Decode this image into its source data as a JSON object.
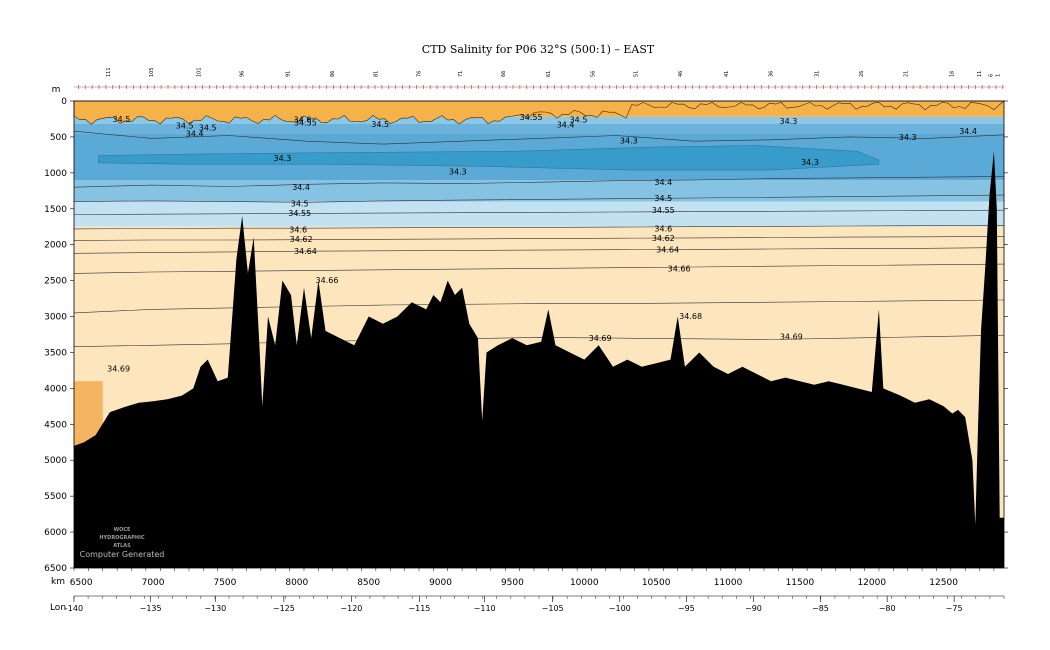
{
  "chart_data": {
    "type": "area",
    "title": "CTD Salinity for P06 32°S (500:1) – EAST",
    "y_unit": "m",
    "x_unit": "km",
    "x2_label": "Lon",
    "ylim": [
      6500,
      0
    ],
    "xlim": [
      6450,
      12920
    ],
    "y_ticks": [
      0,
      500,
      1000,
      1500,
      2000,
      2500,
      3000,
      3500,
      4000,
      4500,
      5000,
      5500,
      6000,
      6500
    ],
    "x_ticks": [
      6500,
      7000,
      7500,
      8000,
      8500,
      9000,
      9500,
      10000,
      10500,
      11000,
      11500,
      12000,
      12500
    ],
    "lon_ticks": [
      {
        "lon": -140,
        "km": 6450,
        "text": "-140"
      },
      {
        "lon": -135,
        "km": 6983,
        "text": "−135"
      },
      {
        "lon": -130,
        "km": 7433,
        "text": "−130"
      },
      {
        "lon": -125,
        "km": 7910,
        "text": "−125"
      },
      {
        "lon": -120,
        "km": 8380,
        "text": "−120"
      },
      {
        "lon": -115,
        "km": 8853,
        "text": "−115"
      },
      {
        "lon": -110,
        "km": 9307,
        "text": "−110"
      },
      {
        "lon": -105,
        "km": 9780,
        "text": "−105"
      },
      {
        "lon": -100,
        "km": 10247,
        "text": "−100"
      },
      {
        "lon": -95,
        "km": 10710,
        "text": "−95"
      },
      {
        "lon": -90,
        "km": 11177,
        "text": "−90"
      },
      {
        "lon": -85,
        "km": 11643,
        "text": "−85"
      },
      {
        "lon": -80,
        "km": 12107,
        "text": "−80"
      },
      {
        "lon": -75,
        "km": 12573,
        "text": "−75"
      }
    ],
    "station_labels": [
      {
        "km": 6700,
        "text": "111"
      },
      {
        "km": 7000,
        "text": "105"
      },
      {
        "km": 7330,
        "text": "101"
      },
      {
        "km": 7630,
        "text": "96"
      },
      {
        "km": 7950,
        "text": "91"
      },
      {
        "km": 8260,
        "text": "86"
      },
      {
        "km": 8560,
        "text": "81"
      },
      {
        "km": 8860,
        "text": "76"
      },
      {
        "km": 9150,
        "text": "71"
      },
      {
        "km": 9450,
        "text": "66"
      },
      {
        "km": 9760,
        "text": "61"
      },
      {
        "km": 10070,
        "text": "56"
      },
      {
        "km": 10370,
        "text": "51"
      },
      {
        "km": 10680,
        "text": "46"
      },
      {
        "km": 11000,
        "text": "41"
      },
      {
        "km": 11310,
        "text": "36"
      },
      {
        "km": 11630,
        "text": "31"
      },
      {
        "km": 11940,
        "text": "26"
      },
      {
        "km": 12250,
        "text": "21"
      },
      {
        "km": 12570,
        "text": "16"
      },
      {
        "km": 12760,
        "text": "11"
      },
      {
        "km": 12840,
        "text": "6"
      },
      {
        "km": 12890,
        "text": "1"
      }
    ],
    "salinity_bands": [
      {
        "from": 0,
        "to": 220,
        "color": "#f5b24a"
      },
      {
        "from": 220,
        "to": 320,
        "color": "#8cc7e6"
      },
      {
        "from": 320,
        "to": 450,
        "color": "#6bb3dc"
      },
      {
        "from": 450,
        "to": 1100,
        "color": "#5aa9d6"
      },
      {
        "from": 1100,
        "to": 1400,
        "color": "#86c3e3"
      },
      {
        "from": 1400,
        "to": 1750,
        "color": "#c3e2f1"
      },
      {
        "from": 1750,
        "to": 6500,
        "color": "#fde6be"
      }
    ],
    "core_color": "#379cc9",
    "bottom_fill_color": "#f5b560",
    "seafloor_color": "#000000",
    "isohalines": [
      {
        "value": 34.4,
        "depths": [
          420,
          520,
          480,
          560,
          600,
          560,
          520,
          480,
          560,
          540,
          500,
          520,
          470
        ]
      },
      {
        "value": 34.4,
        "depths": [
          1200,
          1170,
          1190,
          1160,
          1140,
          1150,
          1130,
          1110,
          1100,
          1080,
          1070,
          1060,
          1050
        ]
      },
      {
        "value": 34.5,
        "depths": [
          1400,
          1390,
          1400,
          1410,
          1390,
          1380,
          1370,
          1360,
          1350,
          1340,
          1330,
          1320,
          1310
        ]
      },
      {
        "value": 34.55,
        "depths": [
          1580,
          1575,
          1570,
          1565,
          1560,
          1555,
          1550,
          1545,
          1540,
          1535,
          1530,
          1525,
          1520
        ]
      },
      {
        "value": 34.6,
        "depths": [
          1780,
          1775,
          1770,
          1770,
          1765,
          1760,
          1760,
          1755,
          1750,
          1745,
          1740,
          1735,
          1730
        ]
      },
      {
        "value": 34.62,
        "depths": [
          1940,
          1935,
          1935,
          1930,
          1925,
          1920,
          1915,
          1910,
          1905,
          1900,
          1895,
          1890,
          1885
        ]
      },
      {
        "value": 34.64,
        "depths": [
          2120,
          2110,
          2100,
          2090,
          2085,
          2080,
          2075,
          2070,
          2065,
          2060,
          2055,
          2050,
          2040
        ]
      },
      {
        "value": 34.66,
        "depths": [
          2400,
          2380,
          2370,
          2360,
          2350,
          2340,
          2330,
          2320,
          2310,
          2300,
          2290,
          2280,
          2270
        ]
      },
      {
        "value": 34.68,
        "depths": [
          2950,
          2900,
          2880,
          2860,
          2840,
          2830,
          2820,
          2820,
          2810,
          2800,
          2790,
          2780,
          2770
        ]
      },
      {
        "value": 34.69,
        "depths": [
          3420,
          3400,
          3380,
          3350,
          3330,
          3310,
          3290,
          3300,
          3310,
          3320,
          3300,
          3280,
          3260
        ]
      }
    ],
    "contour_labels": [
      {
        "text": "34.5",
        "km": 6780,
        "depth": 250
      },
      {
        "text": "34.5",
        "km": 7220,
        "depth": 340
      },
      {
        "text": "34.5",
        "km": 7380,
        "depth": 370
      },
      {
        "text": "34.4",
        "km": 7290,
        "depth": 450
      },
      {
        "text": "34.6",
        "km": 8040,
        "depth": 260
      },
      {
        "text": "34.55",
        "km": 8060,
        "depth": 300
      },
      {
        "text": "34.5",
        "km": 8580,
        "depth": 320
      },
      {
        "text": "34.55",
        "km": 9630,
        "depth": 220
      },
      {
        "text": "34.5",
        "km": 9960,
        "depth": 260
      },
      {
        "text": "34.4",
        "km": 9870,
        "depth": 330
      },
      {
        "text": "34.3",
        "km": 10310,
        "depth": 550
      },
      {
        "text": "34.3",
        "km": 11420,
        "depth": 280
      },
      {
        "text": "34.3",
        "km": 12250,
        "depth": 500
      },
      {
        "text": "34.4",
        "km": 12670,
        "depth": 420
      },
      {
        "text": "34.3",
        "km": 7900,
        "depth": 790
      },
      {
        "text": "34.3",
        "km": 9120,
        "depth": 980
      },
      {
        "text": "34.3",
        "km": 11570,
        "depth": 850
      },
      {
        "text": "34.4",
        "km": 8030,
        "depth": 1200
      },
      {
        "text": "34.4",
        "km": 10550,
        "depth": 1130
      },
      {
        "text": "34.5",
        "km": 8020,
        "depth": 1430
      },
      {
        "text": "34.5",
        "km": 10550,
        "depth": 1350
      },
      {
        "text": "34.55",
        "km": 8020,
        "depth": 1560
      },
      {
        "text": "34.55",
        "km": 10550,
        "depth": 1520
      },
      {
        "text": "34.6",
        "km": 8010,
        "depth": 1790
      },
      {
        "text": "34.6",
        "km": 10550,
        "depth": 1775
      },
      {
        "text": "34.62",
        "km": 8030,
        "depth": 1920
      },
      {
        "text": "34.62",
        "km": 10550,
        "depth": 1910
      },
      {
        "text": "34.64",
        "km": 8060,
        "depth": 2090
      },
      {
        "text": "34.64",
        "km": 10580,
        "depth": 2070
      },
      {
        "text": "34.66",
        "km": 8210,
        "depth": 2490
      },
      {
        "text": "34.66",
        "km": 10660,
        "depth": 2330
      },
      {
        "text": "34.68",
        "km": 10740,
        "depth": 2990
      },
      {
        "text": "34.69",
        "km": 6760,
        "depth": 3720
      },
      {
        "text": "34.69",
        "km": 10110,
        "depth": 3300
      },
      {
        "text": "34.69",
        "km": 11440,
        "depth": 3280
      }
    ],
    "seafloor": [
      [
        6450,
        4800
      ],
      [
        6520,
        4750
      ],
      [
        6600,
        4650
      ],
      [
        6700,
        4330
      ],
      [
        6800,
        4260
      ],
      [
        6900,
        4200
      ],
      [
        7000,
        4180
      ],
      [
        7100,
        4150
      ],
      [
        7200,
        4100
      ],
      [
        7280,
        4000
      ],
      [
        7330,
        3700
      ],
      [
        7380,
        3600
      ],
      [
        7450,
        3900
      ],
      [
        7520,
        3850
      ],
      [
        7580,
        2200
      ],
      [
        7620,
        1600
      ],
      [
        7660,
        2400
      ],
      [
        7700,
        1900
      ],
      [
        7740,
        3400
      ],
      [
        7760,
        4250
      ],
      [
        7800,
        3000
      ],
      [
        7850,
        3400
      ],
      [
        7900,
        2500
      ],
      [
        7960,
        2700
      ],
      [
        8000,
        3400
      ],
      [
        8050,
        2600
      ],
      [
        8100,
        3300
      ],
      [
        8150,
        2500
      ],
      [
        8200,
        3200
      ],
      [
        8300,
        3300
      ],
      [
        8400,
        3400
      ],
      [
        8450,
        3200
      ],
      [
        8500,
        3000
      ],
      [
        8600,
        3100
      ],
      [
        8700,
        3000
      ],
      [
        8800,
        2800
      ],
      [
        8900,
        2900
      ],
      [
        8950,
        2700
      ],
      [
        9000,
        2800
      ],
      [
        9050,
        2500
      ],
      [
        9100,
        2700
      ],
      [
        9150,
        2600
      ],
      [
        9200,
        3100
      ],
      [
        9260,
        3300
      ],
      [
        9290,
        4450
      ],
      [
        9320,
        3500
      ],
      [
        9400,
        3400
      ],
      [
        9500,
        3300
      ],
      [
        9600,
        3400
      ],
      [
        9700,
        3350
      ],
      [
        9750,
        2900
      ],
      [
        9800,
        3400
      ],
      [
        9900,
        3500
      ],
      [
        10000,
        3600
      ],
      [
        10100,
        3400
      ],
      [
        10200,
        3700
      ],
      [
        10300,
        3600
      ],
      [
        10400,
        3700
      ],
      [
        10500,
        3650
      ],
      [
        10600,
        3600
      ],
      [
        10650,
        3000
      ],
      [
        10700,
        3700
      ],
      [
        10800,
        3500
      ],
      [
        10900,
        3700
      ],
      [
        11000,
        3800
      ],
      [
        11100,
        3700
      ],
      [
        11200,
        3800
      ],
      [
        11300,
        3900
      ],
      [
        11400,
        3850
      ],
      [
        11500,
        3900
      ],
      [
        11600,
        3950
      ],
      [
        11700,
        3900
      ],
      [
        11800,
        3950
      ],
      [
        11900,
        4000
      ],
      [
        12000,
        4050
      ],
      [
        12050,
        2900
      ],
      [
        12080,
        4000
      ],
      [
        12200,
        4100
      ],
      [
        12300,
        4200
      ],
      [
        12400,
        4150
      ],
      [
        12500,
        4250
      ],
      [
        12560,
        4350
      ],
      [
        12600,
        4300
      ],
      [
        12650,
        4400
      ],
      [
        12700,
        5000
      ],
      [
        12720,
        5900
      ],
      [
        12740,
        4500
      ],
      [
        12760,
        3200
      ],
      [
        12790,
        2300
      ],
      [
        12820,
        1300
      ],
      [
        12850,
        700
      ],
      [
        12870,
        1500
      ],
      [
        12890,
        5800
      ],
      [
        12920,
        5800
      ]
    ]
  },
  "axis": {
    "depth_unit": "m",
    "dist_unit": "km",
    "lon_label": "Lon"
  },
  "watermark": {
    "line1": "WOCE",
    "line2": "HYDROGRAPHIC",
    "line3": "ATLAS",
    "note": "Computer Generated"
  }
}
